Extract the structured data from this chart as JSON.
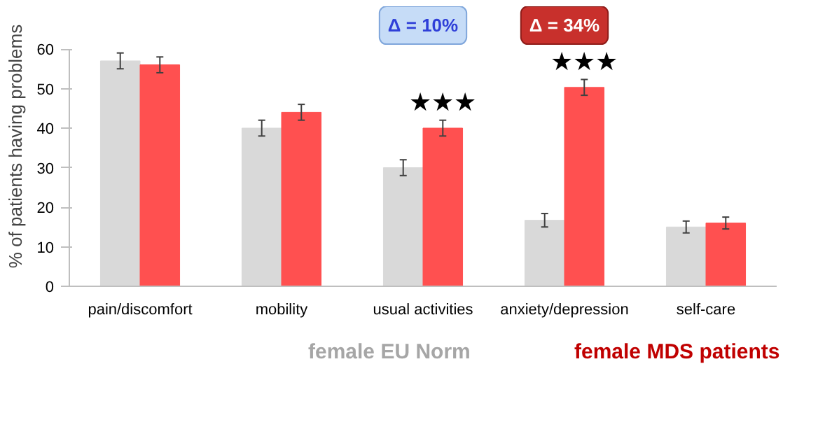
{
  "chart_data": {
    "type": "bar",
    "ylabel": "% of patients having problems",
    "categories": [
      "pain/discomfort",
      "mobility",
      "usual activities",
      "anxiety/depression",
      "self-care"
    ],
    "series": [
      {
        "name": "female EU Norm",
        "color": "#d9d9d9",
        "values": [
          57,
          40,
          30,
          16.7,
          15
        ],
        "errors": [
          2,
          2,
          2,
          1.7,
          1.5
        ]
      },
      {
        "name": "female MDS patients",
        "color": "#ff5050",
        "values": [
          56,
          44,
          40,
          50.3,
          16
        ],
        "errors": [
          2,
          2,
          2,
          2,
          1.5
        ]
      }
    ],
    "ylim": [
      0,
      60
    ],
    "yticks": [
      0,
      10,
      20,
      30,
      40,
      50,
      60
    ],
    "grid": false,
    "legend": "bottom",
    "annotations": [
      "★★★",
      "★★★",
      "Δ = 10%",
      "Δ = 34%"
    ]
  }
}
